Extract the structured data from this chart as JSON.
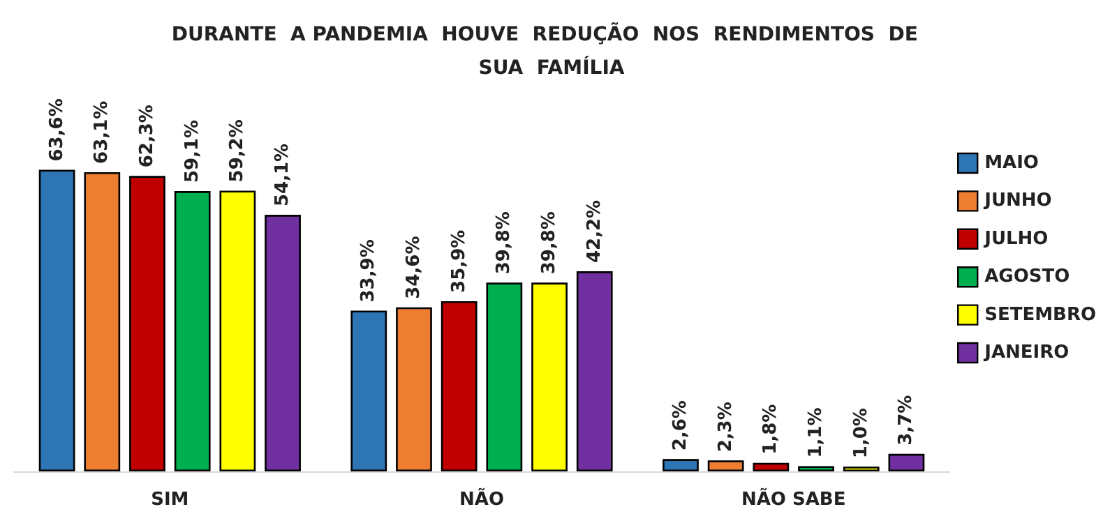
{
  "chart_data": {
    "type": "bar",
    "title": "DURANTE  A PANDEMIA  HOUVE  REDUÇÃO  NOS  RENDIMENTOS  DE  SUA  FAMÍLIA",
    "categories": [
      "SIM",
      "NÃO",
      "NÃO SABE"
    ],
    "series": [
      {
        "name": "MAIO",
        "color": "#2e75b6",
        "values": [
          63.6,
          33.9,
          2.6
        ],
        "value_labels": [
          "63,6%",
          "33,9%",
          "2,6%"
        ]
      },
      {
        "name": "JUNHO",
        "color": "#ed7d31",
        "values": [
          63.1,
          34.6,
          2.3
        ],
        "value_labels": [
          "63,1%",
          "34,6%",
          "2,3%"
        ]
      },
      {
        "name": "JULHO",
        "color": "#c00000",
        "values": [
          62.3,
          35.9,
          1.8
        ],
        "value_labels": [
          "62,3%",
          "35,9%",
          "1,8%"
        ]
      },
      {
        "name": "AGOSTO",
        "color": "#00b050",
        "values": [
          59.1,
          39.8,
          1.1
        ],
        "value_labels": [
          "59,1%",
          "39,8%",
          "1,1%"
        ]
      },
      {
        "name": "SETEMBRO",
        "color": "#ffff00",
        "values": [
          59.2,
          39.8,
          1.0
        ],
        "value_labels": [
          "59,2%",
          "39,8%",
          "1,0%"
        ]
      },
      {
        "name": "JANEIRO",
        "color": "#7030a0",
        "values": [
          54.1,
          42.2,
          3.7
        ],
        "value_labels": [
          "54,1%",
          "42,2%",
          "3,7%"
        ]
      }
    ],
    "legend": "right",
    "tick_labels": "x",
    "grid": false
  }
}
